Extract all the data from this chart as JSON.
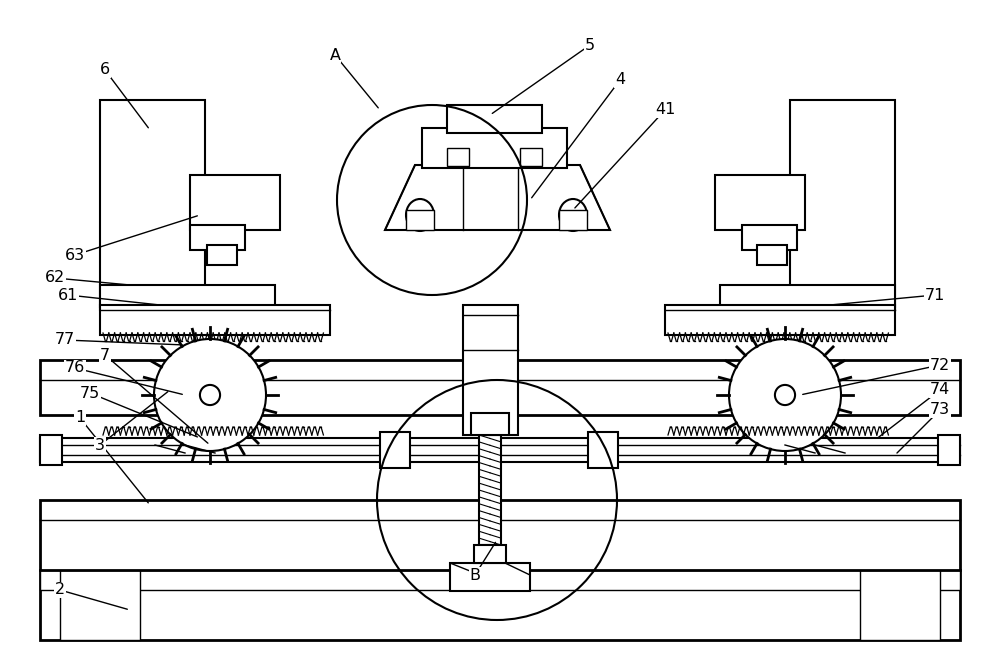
{
  "background_color": "#ffffff",
  "line_color": "#000000",
  "fig_width": 10.0,
  "fig_height": 6.61,
  "dpi": 100
}
